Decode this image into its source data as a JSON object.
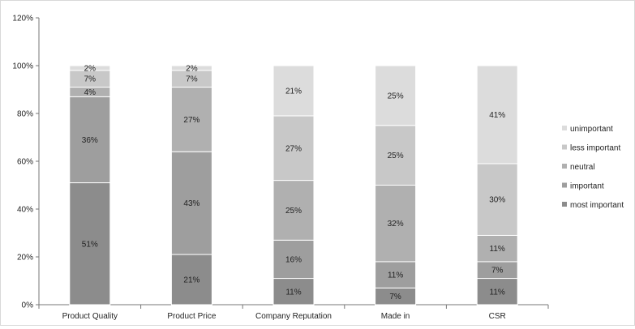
{
  "chart_data": {
    "type": "bar",
    "stacked": true,
    "percent_stacked": true,
    "categories": [
      "Product Quality",
      "Product Price",
      "Company Reputation",
      "Made in",
      "CSR"
    ],
    "series": [
      {
        "name": "most important",
        "values": [
          51,
          21,
          11,
          7,
          11
        ],
        "labels": [
          "51%",
          "21%",
          "11%",
          "7%",
          "11%"
        ],
        "color": "#8c8c8c"
      },
      {
        "name": "important",
        "values": [
          36,
          43,
          16,
          11,
          7
        ],
        "labels": [
          "36%",
          "43%",
          "16%",
          "11%",
          "7%"
        ],
        "color": "#9e9e9e"
      },
      {
        "name": "neutral",
        "values": [
          4,
          27,
          25,
          32,
          11
        ],
        "labels": [
          "4%",
          "27%",
          "25%",
          "32%",
          "11%"
        ],
        "color": "#b0b0b0"
      },
      {
        "name": "less important",
        "values": [
          7,
          7,
          27,
          25,
          30
        ],
        "labels": [
          "7%",
          "7%",
          "27%",
          "25%",
          "30%"
        ],
        "color": "#c8c8c8"
      },
      {
        "name": "unimportant",
        "values": [
          2,
          2,
          21,
          25,
          41
        ],
        "labels": [
          "2%",
          "2%",
          "21%",
          "25%",
          "41%"
        ],
        "color": "#dcdcdc"
      }
    ],
    "ylim": [
      0,
      120
    ],
    "yticks": [
      "0%",
      "20%",
      "40%",
      "60%",
      "80%",
      "100%",
      "120%"
    ],
    "grid": false,
    "legend": "right",
    "title": "",
    "xlabel": "",
    "ylabel": ""
  }
}
